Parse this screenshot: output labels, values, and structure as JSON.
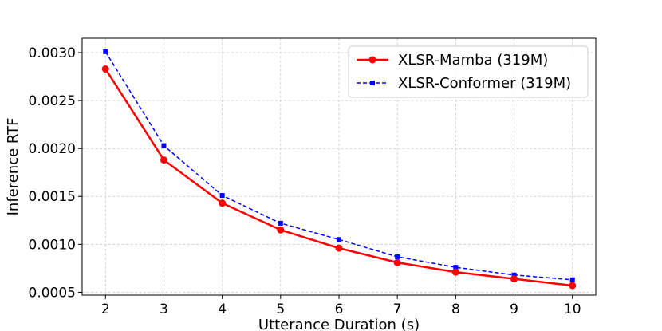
{
  "chart_data": {
    "type": "line",
    "xlabel": "Utterance Duration (s)",
    "ylabel": "Inference RTF",
    "xlim": [
      1.6,
      10.4
    ],
    "ylim": [
      0.00047,
      0.00315
    ],
    "x": [
      2,
      3,
      4,
      5,
      6,
      7,
      8,
      9,
      10
    ],
    "x_ticks": [
      2,
      3,
      4,
      5,
      6,
      7,
      8,
      9,
      10
    ],
    "x_tick_labels": [
      "2",
      "3",
      "4",
      "5",
      "6",
      "7",
      "8",
      "9",
      "10"
    ],
    "y_ticks": [
      0.0005,
      0.001,
      0.0015,
      0.002,
      0.0025,
      0.003
    ],
    "y_tick_labels": [
      "0.0005",
      "0.0010",
      "0.0015",
      "0.0020",
      "0.0025",
      "0.0030"
    ],
    "grid": true,
    "legend_position": "top-right",
    "series": [
      {
        "name": "XLSR-Mamba (319M)",
        "color": "#ff0000",
        "line_style": "solid",
        "marker": "circle",
        "values": [
          0.00283,
          0.00188,
          0.00143,
          0.00115,
          0.00096,
          0.00081,
          0.00071,
          0.00064,
          0.00057
        ]
      },
      {
        "name": "XLSR-Conformer (319M)",
        "color": "#0000ff",
        "line_style": "dashed",
        "marker": "square",
        "values": [
          0.00301,
          0.00203,
          0.00151,
          0.00122,
          0.00105,
          0.00087,
          0.00076,
          0.00068,
          0.00063
        ]
      }
    ]
  }
}
